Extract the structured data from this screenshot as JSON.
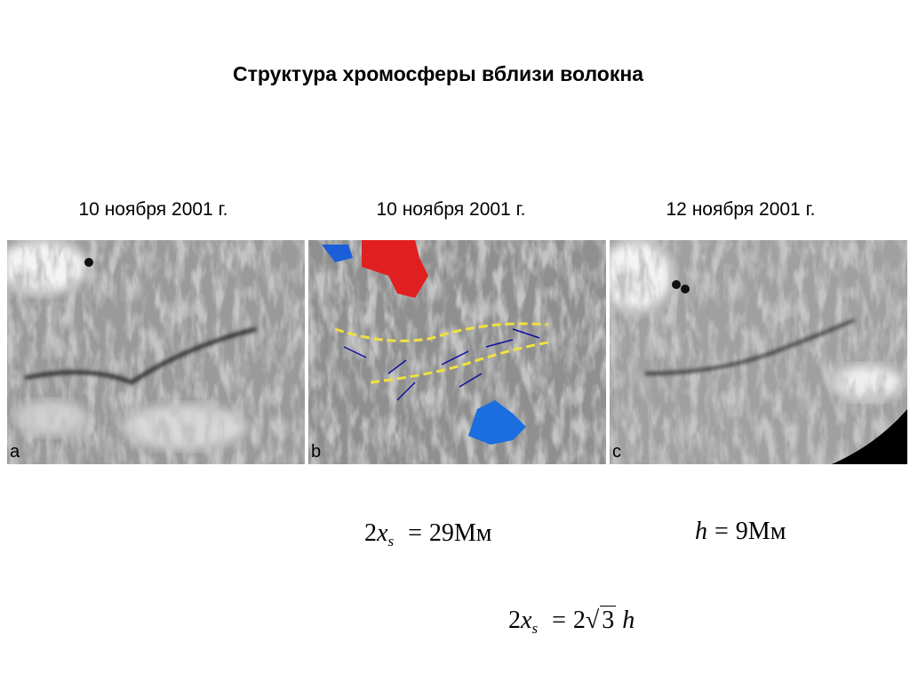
{
  "header": {
    "title": "Структура хромосферы вблизи волокна"
  },
  "panels": [
    {
      "date": "10 ноября 2001 г.",
      "letter": "a"
    },
    {
      "date": "10 ноября 2001 г.",
      "letter": "b"
    },
    {
      "date": "12 ноября 2001 г.",
      "letter": "c"
    }
  ],
  "formulas": [
    {
      "coef": "2",
      "var": "x",
      "sub": "s",
      "eq": "=",
      "rhs": "29Мм"
    },
    {
      "var": "h",
      "eq": "=",
      "rhs": "9Мм"
    },
    {
      "coef": "2",
      "var": "x",
      "sub": "s",
      "eq": "=",
      "rhs_coef": "2",
      "root": "3",
      "rhs_var": "h"
    }
  ]
}
